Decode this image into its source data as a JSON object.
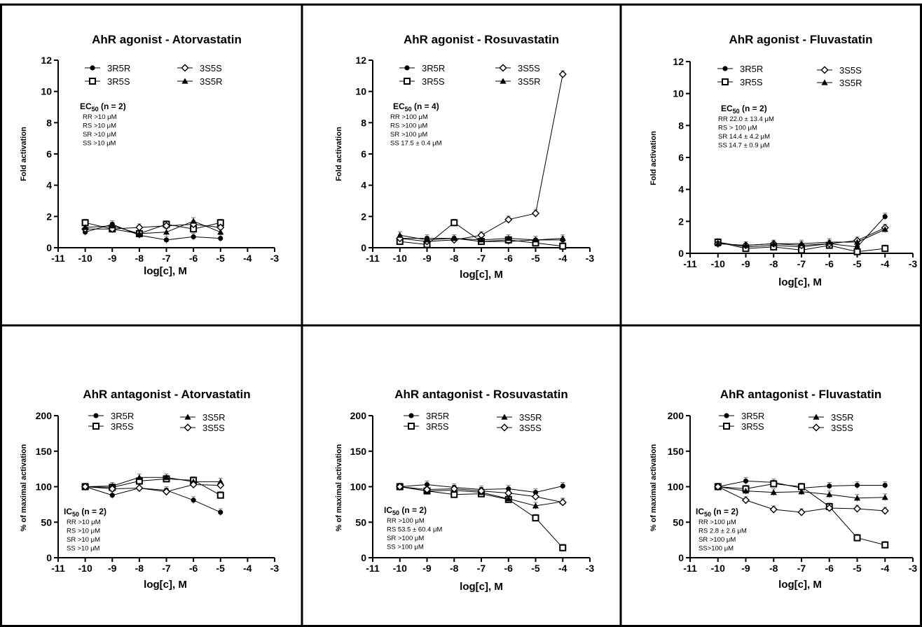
{
  "chart_data": [
    {
      "type": "line",
      "title": "AhR agonist - Atorvastatin",
      "xlabel": "log[c], M",
      "ylabel": "Fold activation",
      "xlim": [
        -11,
        -3
      ],
      "ylim": [
        0,
        12
      ],
      "xticks": [
        "-11",
        "-10",
        "-9",
        "-8",
        "-7",
        "-6",
        "-5",
        "-4",
        "-3"
      ],
      "yticks": [
        "0",
        "2",
        "4",
        "6",
        "8",
        "10",
        "12"
      ],
      "legend": [
        "3R5R",
        "3R5S",
        "3S5S",
        "3S5R"
      ],
      "note_head": "EC",
      "note_sub": "50",
      "note_tail": " (n = 2)",
      "note_lines": [
        "RR >10 μM",
        "RS >10 μM",
        "SR >10 μM",
        "SS >10 μM"
      ],
      "series": [
        {
          "name": "3R5R",
          "marker": "circle",
          "x": [
            -10,
            -9,
            -8,
            -7,
            -6,
            -5
          ],
          "y": [
            1.0,
            1.5,
            0.8,
            0.5,
            0.7,
            0.6
          ]
        },
        {
          "name": "3R5S",
          "marker": "square",
          "x": [
            -10,
            -9,
            -8,
            -7,
            -6,
            -5
          ],
          "y": [
            1.6,
            1.2,
            0.9,
            1.5,
            1.2,
            1.6
          ]
        },
        {
          "name": "3S5S",
          "marker": "diamond",
          "x": [
            -10,
            -9,
            -8,
            -7,
            -6,
            -5
          ],
          "y": [
            1.2,
            1.2,
            1.3,
            1.4,
            1.5,
            1.3
          ]
        },
        {
          "name": "3S5R",
          "marker": "triangle",
          "x": [
            -10,
            -9,
            -8,
            -7,
            -6,
            -5
          ],
          "y": [
            1.3,
            1.4,
            0.9,
            1.0,
            1.7,
            1.0
          ]
        }
      ]
    },
    {
      "type": "line",
      "title": "AhR agonist - Rosuvastatin",
      "xlabel": "log[c], M",
      "ylabel": "Fold activation",
      "xlim": [
        -11,
        -3
      ],
      "ylim": [
        0,
        12
      ],
      "xticks": [
        "-11",
        "-10",
        "-9",
        "-8",
        "-7",
        "-6",
        "-5",
        "-4",
        "-3"
      ],
      "yticks": [
        "0",
        "2",
        "4",
        "6",
        "8",
        "10",
        "12"
      ],
      "legend": [
        "3R5R",
        "3R5S",
        "3S5S",
        "3S5R"
      ],
      "note_head": "EC",
      "note_sub": "50",
      "note_tail": " (n = 4)",
      "note_lines": [
        "RR >100 μM",
        "RS >100 μM",
        "SR >100 μM",
        "SS 17.5 ± 0.4 μM"
      ],
      "series": [
        {
          "name": "3R5R",
          "marker": "circle",
          "x": [
            -10,
            -9,
            -8,
            -7,
            -6,
            -5,
            -4
          ],
          "y": [
            0.6,
            0.6,
            0.6,
            0.4,
            0.4,
            0.5,
            0.5
          ]
        },
        {
          "name": "3R5S",
          "marker": "square",
          "x": [
            -10,
            -9,
            -8,
            -7,
            -6,
            -5,
            -4
          ],
          "y": [
            0.4,
            0.2,
            1.6,
            0.4,
            0.5,
            0.3,
            0.1
          ]
        },
        {
          "name": "3S5S",
          "marker": "diamond",
          "x": [
            -10,
            -9,
            -8,
            -7,
            -6,
            -5,
            -4
          ],
          "y": [
            0.6,
            0.4,
            0.5,
            0.8,
            1.8,
            2.2,
            11.1
          ]
        },
        {
          "name": "3S5R",
          "marker": "triangle",
          "x": [
            -10,
            -9,
            -8,
            -7,
            -6,
            -5,
            -4
          ],
          "y": [
            0.8,
            0.5,
            0.6,
            0.5,
            0.6,
            0.5,
            0.6
          ]
        }
      ]
    },
    {
      "type": "line",
      "title": "AhR agonist - Fluvastatin",
      "xlabel": "log[c], M",
      "ylabel": "Fold activation",
      "xlim": [
        -11,
        -3
      ],
      "ylim": [
        0,
        12
      ],
      "xticks": [
        "-11",
        "-10",
        "-9",
        "-8",
        "-7",
        "-6",
        "-5",
        "-4",
        "-3"
      ],
      "yticks": [
        "0",
        "2",
        "4",
        "6",
        "8",
        "10",
        "12"
      ],
      "legend": [
        "3R5R",
        "3R5S",
        "3S5S",
        "3S5R"
      ],
      "note_head": "EC",
      "note_sub": "50",
      "note_tail": " (n = 2)",
      "note_lines": [
        "RR 22.0 ± 13.4 μM",
        "RS > 100 μM",
        "SR 14.4 ± 4.2 μM",
        "SS 14.7 ± 0.9 μM"
      ],
      "series": [
        {
          "name": "3R5R",
          "marker": "circle",
          "x": [
            -10,
            -9,
            -8,
            -7,
            -6,
            -5,
            -4
          ],
          "y": [
            0.7,
            0.4,
            0.5,
            0.4,
            0.6,
            0.4,
            2.3
          ]
        },
        {
          "name": "3R5S",
          "marker": "square",
          "x": [
            -10,
            -9,
            -8,
            -7,
            -6,
            -5,
            -4
          ],
          "y": [
            0.7,
            0.3,
            0.4,
            0.2,
            0.5,
            0.1,
            0.3
          ]
        },
        {
          "name": "3S5S",
          "marker": "diamond",
          "x": [
            -10,
            -9,
            -8,
            -7,
            -6,
            -5,
            -4
          ],
          "y": [
            0.6,
            0.5,
            0.6,
            0.5,
            0.6,
            0.8,
            1.6
          ]
        },
        {
          "name": "3S5R",
          "marker": "triangle",
          "x": [
            -10,
            -9,
            -8,
            -7,
            -6,
            -5,
            -4
          ],
          "y": [
            0.6,
            0.5,
            0.6,
            0.6,
            0.7,
            0.7,
            1.5
          ]
        }
      ]
    },
    {
      "type": "line",
      "title": "AhR antagonist - Atorvastatin",
      "xlabel": "log[c], M",
      "ylabel": "% of maximal activation",
      "xlim": [
        -11,
        -3
      ],
      "ylim": [
        0,
        200
      ],
      "xticks": [
        "-11",
        "-10",
        "-9",
        "-8",
        "-7",
        "-6",
        "-5",
        "-4",
        "-3"
      ],
      "yticks": [
        "0",
        "50",
        "100",
        "150",
        "200"
      ],
      "legend": [
        "3R5R",
        "3R5S",
        "3S5R",
        "3S5S"
      ],
      "note_head": "IC",
      "note_sub": "50",
      "note_tail": " (n = 2)",
      "note_lines": [
        "RR >10 μM",
        "RS >10 μM",
        "SR >10 μM",
        "SS >10 μM"
      ],
      "series": [
        {
          "name": "3R5R",
          "marker": "circle",
          "x": [
            -10,
            -9,
            -8,
            -7,
            -6,
            -5
          ],
          "y": [
            100,
            88,
            98,
            95,
            81,
            64
          ]
        },
        {
          "name": "3R5S",
          "marker": "square",
          "x": [
            -10,
            -9,
            -8,
            -7,
            -6,
            -5
          ],
          "y": [
            100,
            99,
            108,
            111,
            109,
            88
          ]
        },
        {
          "name": "3S5R",
          "marker": "triangle",
          "x": [
            -10,
            -9,
            -8,
            -7,
            -6,
            -5
          ],
          "y": [
            100,
            101,
            113,
            113,
            107,
            107
          ]
        },
        {
          "name": "3S5S",
          "marker": "diamond",
          "x": [
            -10,
            -9,
            -8,
            -7,
            -6,
            -5
          ],
          "y": [
            100,
            97,
            98,
            93,
            103,
            102
          ]
        }
      ]
    },
    {
      "type": "line",
      "title": "AhR antagonist - Rosuvastatin",
      "xlabel": "log[c], M",
      "ylabel": "% of maximal activation",
      "xlim": [
        -11,
        -3
      ],
      "ylim": [
        0,
        200
      ],
      "xticks": [
        "-11",
        "-10",
        "-9",
        "-8",
        "-7",
        "-6",
        "-5",
        "-4",
        "-3"
      ],
      "yticks": [
        "0",
        "50",
        "100",
        "150",
        "200"
      ],
      "legend": [
        "3R5R",
        "3R5S",
        "3S5R",
        "3S5S"
      ],
      "note_head": "IC",
      "note_sub": "50",
      "note_tail": " (n = 2)",
      "note_lines": [
        "RR >100 μM",
        "RS 53.5 ± 60.4 μM",
        "SR >100 μM",
        "SS >100 μM"
      ],
      "series": [
        {
          "name": "3R5R",
          "marker": "circle",
          "x": [
            -10,
            -9,
            -8,
            -7,
            -6,
            -5,
            -4
          ],
          "y": [
            100,
            103,
            99,
            96,
            97,
            92,
            101
          ]
        },
        {
          "name": "3R5S",
          "marker": "square",
          "x": [
            -10,
            -9,
            -8,
            -7,
            -6,
            -5,
            -4
          ],
          "y": [
            100,
            94,
            89,
            90,
            82,
            56,
            14
          ]
        },
        {
          "name": "3S5R",
          "marker": "triangle",
          "x": [
            -10,
            -9,
            -8,
            -7,
            -6,
            -5,
            -4
          ],
          "y": [
            100,
            94,
            95,
            92,
            83,
            73,
            79
          ]
        },
        {
          "name": "3S5S",
          "marker": "diamond",
          "x": [
            -10,
            -9,
            -8,
            -7,
            -6,
            -5,
            -4
          ],
          "y": [
            100,
            96,
            97,
            94,
            91,
            86,
            78
          ]
        }
      ]
    },
    {
      "type": "line",
      "title": "AhR antagonist - Fluvastatin",
      "xlabel": "log[c], M",
      "ylabel": "% of maximal activation",
      "xlim": [
        -11,
        -3
      ],
      "ylim": [
        0,
        200
      ],
      "xticks": [
        "-11",
        "-10",
        "-9",
        "-8",
        "-7",
        "-6",
        "-5",
        "-4",
        "-3"
      ],
      "yticks": [
        "0",
        "50",
        "100",
        "150",
        "200"
      ],
      "legend": [
        "3R5R",
        "3R5S",
        "3S5R",
        "3S5S"
      ],
      "note_head": "IC",
      "note_sub": "50",
      "note_tail": " (n = 2)",
      "note_lines": [
        "RR >100 μM",
        "RS 2.8 ± 2.6 μM",
        "SR >100 μM",
        "SS>100 μM"
      ],
      "series": [
        {
          "name": "3R5R",
          "marker": "circle",
          "x": [
            -10,
            -9,
            -8,
            -7,
            -6,
            -5,
            -4
          ],
          "y": [
            100,
            108,
            106,
            98,
            101,
            102,
            102
          ]
        },
        {
          "name": "3R5S",
          "marker": "square",
          "x": [
            -10,
            -9,
            -8,
            -7,
            -6,
            -5,
            -4
          ],
          "y": [
            100,
            97,
            104,
            100,
            72,
            28,
            18
          ]
        },
        {
          "name": "3S5R",
          "marker": "triangle",
          "x": [
            -10,
            -9,
            -8,
            -7,
            -6,
            -5,
            -4
          ],
          "y": [
            100,
            94,
            92,
            93,
            89,
            84,
            85
          ]
        },
        {
          "name": "3S5S",
          "marker": "diamond",
          "x": [
            -10,
            -9,
            -8,
            -7,
            -6,
            -5,
            -4
          ],
          "y": [
            100,
            81,
            68,
            64,
            70,
            69,
            66
          ]
        }
      ]
    }
  ]
}
